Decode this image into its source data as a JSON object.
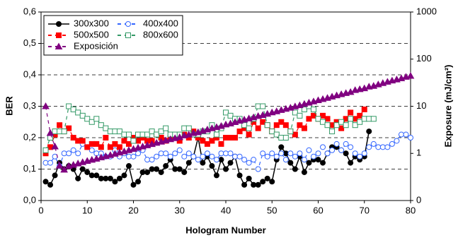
{
  "chart_data": {
    "type": "line",
    "xlabel": "Hologram Number",
    "ylabel": "BER",
    "y2label": "Exposure (mJ/cm²)",
    "xlim": [
      0,
      80
    ],
    "xticks": [
      0,
      10,
      20,
      30,
      40,
      50,
      60,
      70,
      80
    ],
    "ylim": [
      0,
      0.6
    ],
    "yticks": [
      {
        "value": 0,
        "label": "0,0"
      },
      {
        "value": 0.1,
        "label": "0,1"
      },
      {
        "value": 0.2,
        "label": "0,2"
      },
      {
        "value": 0.3,
        "label": "0,3"
      },
      {
        "value": 0.4,
        "label": "0,4"
      },
      {
        "value": 0.5,
        "label": "0,5"
      },
      {
        "value": 0.6,
        "label": "0,6"
      }
    ],
    "y2lim": [
      0.1,
      1000
    ],
    "y2log": true,
    "y2ticks": [
      {
        "value": 0.1,
        "label": "0"
      },
      1,
      10,
      100,
      1000
    ],
    "grid": true,
    "legend": "upper-left",
    "x": [
      1,
      2,
      3,
      4,
      5,
      6,
      7,
      8,
      9,
      10,
      11,
      12,
      13,
      14,
      15,
      16,
      17,
      18,
      19,
      20,
      21,
      22,
      23,
      24,
      25,
      26,
      27,
      28,
      29,
      30,
      31,
      32,
      33,
      34,
      35,
      36,
      37,
      38,
      39,
      40,
      41,
      42,
      43,
      44,
      45,
      46,
      47,
      48,
      49,
      50,
      51,
      52,
      53,
      54,
      55,
      56,
      57,
      58,
      59,
      60,
      61,
      62,
      63,
      64,
      65,
      66,
      67,
      68,
      69,
      70,
      71,
      72,
      73,
      74,
      75,
      76,
      77,
      78,
      79,
      80
    ],
    "series": [
      {
        "name": "300x300",
        "color": "#000000",
        "marker": "circle-filled",
        "line": "solid",
        "values": [
          0.06,
          0.05,
          0.08,
          0.12,
          0.1,
          0.11,
          0.1,
          0.07,
          0.1,
          0.09,
          0.08,
          0.08,
          0.07,
          0.07,
          0.07,
          0.06,
          0.07,
          0.08,
          0.11,
          0.05,
          0.06,
          0.09,
          0.09,
          0.1,
          0.1,
          0.09,
          0.11,
          0.13,
          0.1,
          0.1,
          0.09,
          0.12,
          0.14,
          0.2,
          0.12,
          0.14,
          0.11,
          0.08,
          0.13,
          0.1,
          0.12,
          0.14,
          0.08,
          0.05,
          0.07,
          0.05,
          0.05,
          0.06,
          0.07,
          0.06,
          0.13,
          0.17,
          0.15,
          0.12,
          0.1,
          0.14,
          0.09,
          0.12,
          0.13,
          0.13,
          0.12,
          0.15,
          0.17,
          0.17,
          0.16,
          0.15,
          0.12,
          0.14,
          0.13,
          0.14,
          0.22,
          null,
          null,
          null,
          null,
          null,
          null,
          null,
          null,
          null
        ]
      },
      {
        "name": "400x400",
        "color": "#3366ff",
        "marker": "circle-open",
        "line": "dashed",
        "values": [
          0.12,
          0.12,
          0.14,
          0.11,
          0.15,
          0.15,
          0.16,
          0.15,
          0.18,
          0.17,
          0.16,
          0.15,
          0.15,
          0.14,
          0.14,
          0.16,
          0.14,
          0.15,
          0.14,
          0.14,
          0.15,
          0.16,
          0.13,
          0.13,
          0.14,
          0.15,
          0.15,
          0.14,
          0.15,
          0.16,
          0.14,
          0.15,
          0.14,
          0.13,
          0.14,
          0.15,
          0.14,
          0.13,
          0.15,
          0.15,
          0.15,
          0.14,
          0.14,
          0.13,
          0.12,
          0.13,
          0.1,
          0.15,
          0.14,
          0.15,
          0.14,
          0.15,
          0.13,
          0.15,
          0.14,
          0.15,
          0.13,
          0.16,
          0.14,
          0.15,
          0.17,
          0.15,
          0.16,
          0.18,
          0.16,
          0.18,
          0.17,
          0.15,
          0.14,
          0.15,
          0.17,
          0.18,
          0.17,
          0.17,
          0.17,
          0.18,
          0.19,
          0.21,
          0.21,
          0.2
        ]
      },
      {
        "name": "500x500",
        "color": "#ff0000",
        "marker": "square-filled",
        "line": "dashed",
        "values": [
          0.15,
          0.17,
          0.21,
          0.24,
          0.22,
          0.23,
          0.2,
          0.19,
          0.19,
          0.17,
          0.18,
          0.18,
          0.17,
          0.2,
          0.17,
          0.18,
          0.17,
          0.19,
          0.18,
          0.2,
          0.19,
          0.2,
          0.19,
          0.19,
          0.21,
          0.2,
          0.19,
          0.2,
          0.2,
          0.19,
          0.21,
          0.2,
          0.22,
          0.2,
          0.19,
          0.18,
          0.19,
          0.2,
          0.18,
          0.2,
          0.2,
          0.2,
          0.22,
          0.23,
          0.21,
          0.25,
          0.23,
          0.25,
          0.24,
          0.22,
          0.24,
          0.25,
          0.24,
          0.22,
          0.21,
          0.24,
          0.23,
          0.26,
          0.27,
          0.26,
          0.27,
          0.26,
          0.24,
          0.25,
          0.23,
          0.26,
          0.28,
          0.26,
          0.27,
          0.29,
          null,
          null,
          null,
          null,
          null,
          null,
          null,
          null,
          null,
          null
        ]
      },
      {
        "name": "800x600",
        "color": "#339966",
        "marker": "square-open",
        "line": "dashed",
        "values": [
          0.16,
          0.2,
          0.22,
          0.22,
          0.22,
          0.3,
          0.29,
          0.28,
          0.27,
          0.26,
          0.25,
          0.26,
          0.24,
          0.23,
          0.22,
          0.22,
          0.22,
          0.21,
          0.21,
          0.19,
          0.21,
          0.21,
          0.21,
          0.22,
          0.21,
          0.22,
          0.23,
          0.21,
          0.21,
          0.21,
          0.23,
          0.23,
          0.21,
          0.21,
          0.22,
          0.22,
          0.24,
          0.21,
          0.23,
          0.28,
          0.27,
          0.26,
          0.26,
          0.24,
          0.23,
          0.26,
          0.3,
          0.3,
          0.24,
          0.22,
          0.21,
          0.2,
          0.2,
          0.22,
          0.28,
          0.27,
          0.29,
          0.3,
          0.29,
          0.26,
          0.25,
          0.24,
          0.22,
          0.24,
          0.25,
          0.24,
          0.26,
          0.24,
          0.25,
          0.26,
          0.26,
          0.26,
          null,
          null,
          null,
          null,
          null,
          null,
          null,
          null
        ]
      },
      {
        "name": "Exposición",
        "color": "#800080",
        "marker": "triangle-filled",
        "line": "dashed",
        "axis": "y2",
        "values": [
          10,
          2.7,
          1.4,
          0.55,
          0.45,
          0.54,
          0.57,
          0.61,
          0.65,
          0.69,
          0.73,
          0.77,
          0.82,
          0.87,
          0.92,
          0.98,
          1.04,
          1.1,
          1.17,
          1.24,
          1.32,
          1.4,
          1.48,
          1.57,
          1.67,
          1.77,
          1.88,
          1.99,
          2.1,
          2.2,
          2.4,
          2.5,
          2.7,
          2.8,
          3.0,
          3.2,
          3.4,
          3.6,
          3.8,
          4.1,
          4.3,
          4.6,
          4.9,
          5.2,
          5.5,
          5.8,
          6.2,
          6.5,
          6.9,
          7.4,
          7.8,
          8.3,
          8.8,
          9.3,
          9.9,
          10.5,
          11.2,
          11.9,
          12.6,
          13.4,
          14.2,
          15,
          16,
          17,
          18,
          19,
          20,
          22,
          23,
          24,
          26,
          27,
          29,
          31,
          33,
          35,
          37,
          39,
          42,
          44
        ]
      }
    ]
  }
}
